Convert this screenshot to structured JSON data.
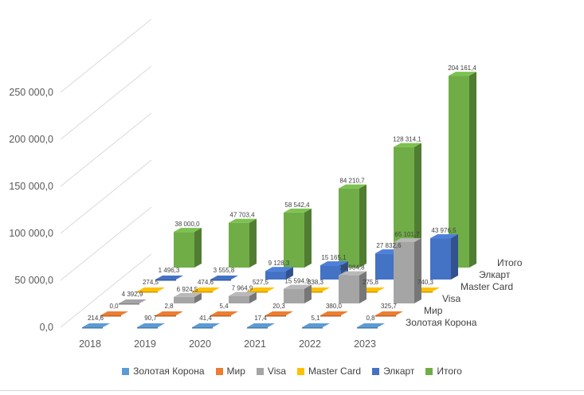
{
  "chart_data": {
    "type": "bar",
    "subtype": "3d-clustered-depth",
    "title": "",
    "categories": [
      "2018",
      "2019",
      "2020",
      "2021",
      "2022",
      "2023"
    ],
    "ylim": [
      0,
      250000
    ],
    "y_ticks": [
      "0,0",
      "50 000,0",
      "100 000,0",
      "150 000,0",
      "200 000,0",
      "250 000,0"
    ],
    "grid": true,
    "legend_position": "bottom",
    "series": [
      {
        "name": "Золотая Корона",
        "color": "#5b9bd5",
        "values": [
          214.6,
          90.7,
          41.4,
          17.4,
          5.1,
          0.8
        ],
        "labels": [
          "214,6",
          "90,7",
          "41,4",
          "17,4",
          "5,1",
          "0,8"
        ]
      },
      {
        "name": "Мир",
        "color": "#ed7d31",
        "values": [
          0.0,
          2.8,
          5.4,
          20.3,
          380.0,
          325.7
        ],
        "labels": [
          "0,0",
          "2,8",
          "5,4",
          "20,3",
          "380,0",
          "325,7"
        ]
      },
      {
        "name": "Visa",
        "color": "#a5a5a5",
        "values": [
          4392.9,
          6924.5,
          7964.9,
          15594.9,
          29984.8,
          65101.7
        ],
        "labels": [
          "4 392,9",
          "6 924,5",
          "7 964,9",
          "15 594,9",
          "29 984,8",
          "65 101,7"
        ]
      },
      {
        "name": "Master Card",
        "color": "#ffc000",
        "values": [
          274.5,
          474.6,
          527.5,
          338.3,
          275.8,
          740.3
        ],
        "labels": [
          "274,5",
          "474,6",
          "527,5",
          "338,3",
          "275,8",
          "740,3"
        ]
      },
      {
        "name": "Элкарт",
        "color": "#4472c4",
        "values": [
          1496.3,
          3555.8,
          9128.3,
          15165.1,
          27832.6,
          43976.5
        ],
        "labels": [
          "1 496,3",
          "3 555,8",
          "9 128,3",
          "15 165,1",
          "27 832,6",
          "43 976,5"
        ]
      },
      {
        "name": "Итого",
        "color": "#70ad47",
        "values": [
          38000.0,
          47703.4,
          58542.4,
          84210.7,
          128314.1,
          204161.4
        ],
        "labels": [
          "38 000,0",
          "47 703,4",
          "58 542,4",
          "84 210,7",
          "128 314,1",
          "204 161,4"
        ]
      }
    ]
  }
}
